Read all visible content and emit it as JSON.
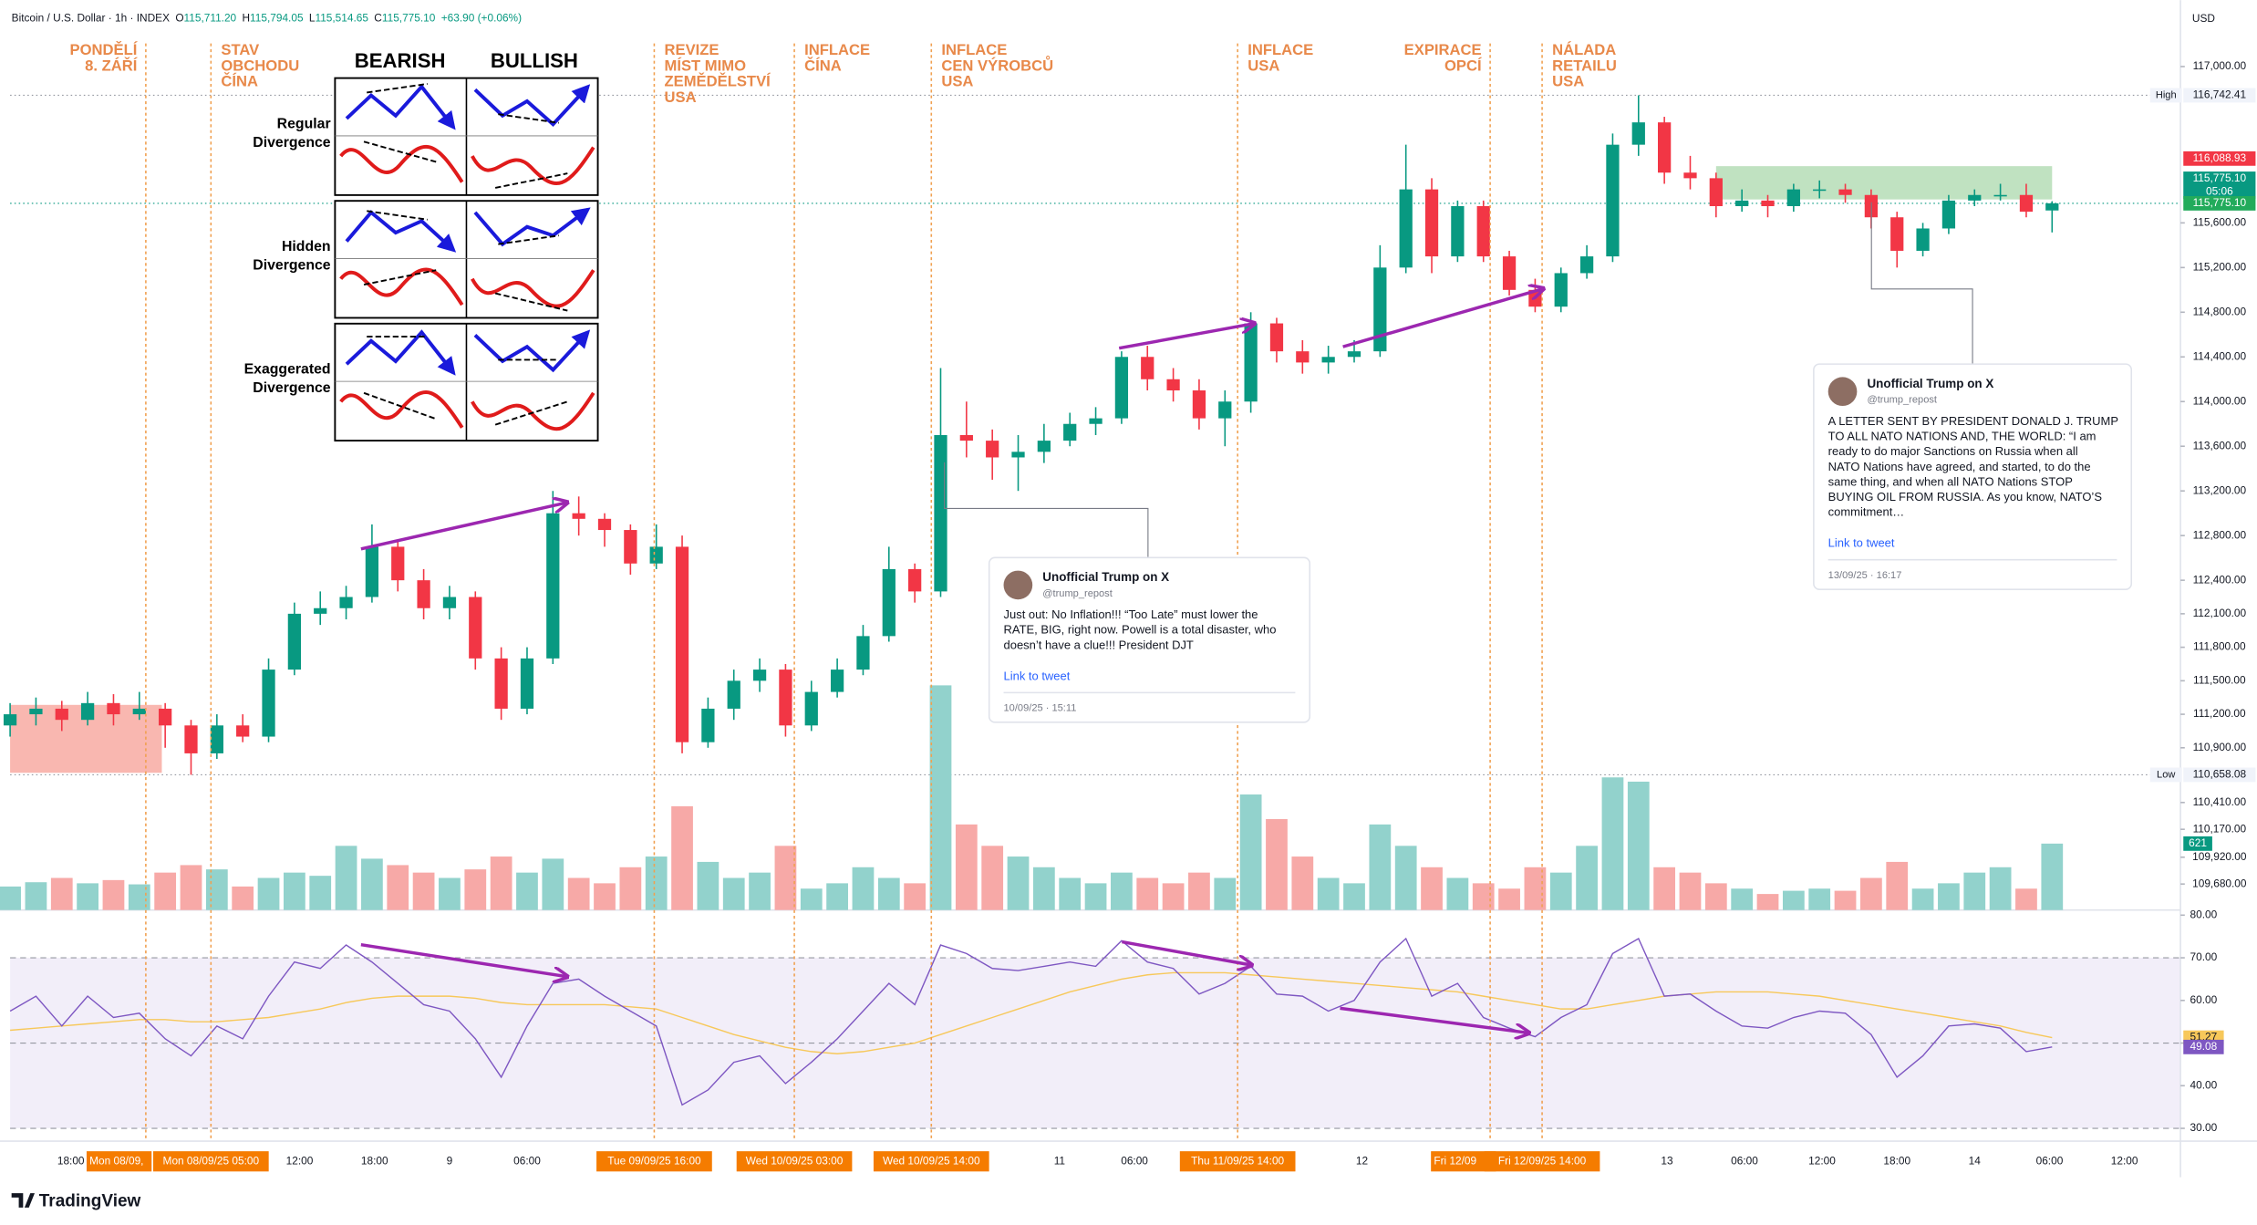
{
  "chart_data": {
    "type": "candlestick",
    "header": {
      "symbol": "Bitcoin / U.S. Dollar · 1h · INDEX",
      "ohlc": [
        {
          "key": "O",
          "value": "115,711.20"
        },
        {
          "key": "H",
          "value": "115,794.05"
        },
        {
          "key": "L",
          "value": "115,514.65"
        },
        {
          "key": "C",
          "value": "115,775.10"
        }
      ],
      "change": "+63.90 (+0.06%)"
    },
    "currency": "USD",
    "colors": {
      "up": "#089981",
      "down": "#f23645",
      "volume_up": "#92d2cc",
      "volume_down": "#f7a9a7",
      "rsi": "#7e57c2",
      "rsi_ma": "#f7c85a",
      "event": "#e8894a"
    },
    "ylim": [
      109447,
      117595
    ],
    "yticks": [
      {
        "value": 117000,
        "label": "117,000.00"
      },
      {
        "value": 115600,
        "label": "115,600.00"
      },
      {
        "value": 115200,
        "label": "115,200.00"
      },
      {
        "value": 114800,
        "label": "114,800.00"
      },
      {
        "value": 114400,
        "label": "114,400.00"
      },
      {
        "value": 114000,
        "label": "114,000.00"
      },
      {
        "value": 113600,
        "label": "113,600.00"
      },
      {
        "value": 113200,
        "label": "113,200.00"
      },
      {
        "value": 112800,
        "label": "112,800.00"
      },
      {
        "value": 112400,
        "label": "112,400.00"
      },
      {
        "value": 112100,
        "label": "112,100.00"
      },
      {
        "value": 111800,
        "label": "111,800.00"
      },
      {
        "value": 111500,
        "label": "111,500.00"
      },
      {
        "value": 111200,
        "label": "111,200.00"
      },
      {
        "value": 110900,
        "label": "110,900.00"
      },
      {
        "value": 110410,
        "label": "110,410.00"
      },
      {
        "value": 110170,
        "label": "110,170.00"
      },
      {
        "value": 109920,
        "label": "109,920.00"
      },
      {
        "value": 109680,
        "label": "109,680.00"
      }
    ],
    "candles": [
      [
        111100,
        111300,
        111000,
        111200
      ],
      [
        111200,
        111350,
        111100,
        111250
      ],
      [
        111250,
        111320,
        111050,
        111150
      ],
      [
        111150,
        111400,
        111100,
        111300
      ],
      [
        111300,
        111380,
        111100,
        111200
      ],
      [
        111200,
        111400,
        111150,
        111250
      ],
      [
        111250,
        111300,
        110900,
        111100
      ],
      [
        111100,
        111150,
        110658.08,
        110850
      ],
      [
        110850,
        111200,
        110800,
        111100
      ],
      [
        111100,
        111200,
        110950,
        111000
      ],
      [
        111000,
        111700,
        110950,
        111600
      ],
      [
        111600,
        112200,
        111550,
        112100
      ],
      [
        112100,
        112300,
        112000,
        112150
      ],
      [
        112150,
        112350,
        112050,
        112250
      ],
      [
        112250,
        112900,
        112200,
        112700
      ],
      [
        112700,
        112750,
        112300,
        112400
      ],
      [
        112400,
        112500,
        112050,
        112150
      ],
      [
        112150,
        112350,
        112050,
        112250
      ],
      [
        112250,
        112300,
        111600,
        111700
      ],
      [
        111700,
        111800,
        111150,
        111250
      ],
      [
        111250,
        111800,
        111200,
        111700
      ],
      [
        111700,
        113200,
        111650,
        113000
      ],
      [
        113000,
        113150,
        112800,
        112950
      ],
      [
        112950,
        113000,
        112700,
        112850
      ],
      [
        112850,
        112900,
        112450,
        112550
      ],
      [
        112550,
        112900,
        112500,
        112700
      ],
      [
        112700,
        112800,
        110850,
        110950
      ],
      [
        110950,
        111350,
        110900,
        111250
      ],
      [
        111250,
        111600,
        111150,
        111500
      ],
      [
        111500,
        111700,
        111400,
        111600
      ],
      [
        111600,
        111650,
        111000,
        111100
      ],
      [
        111100,
        111500,
        111050,
        111400
      ],
      [
        111400,
        111700,
        111350,
        111600
      ],
      [
        111600,
        112000,
        111550,
        111900
      ],
      [
        111900,
        112700,
        111850,
        112500
      ],
      [
        112500,
        112550,
        112200,
        112300
      ],
      [
        112300,
        114300,
        112250,
        113700
      ],
      [
        113700,
        114000,
        113500,
        113650
      ],
      [
        113650,
        113750,
        113300,
        113500
      ],
      [
        113500,
        113700,
        113200,
        113550
      ],
      [
        113550,
        113800,
        113450,
        113650
      ],
      [
        113650,
        113900,
        113600,
        113800
      ],
      [
        113800,
        113950,
        113700,
        113850
      ],
      [
        113850,
        114450,
        113800,
        114400
      ],
      [
        114400,
        114500,
        114100,
        114200
      ],
      [
        114200,
        114300,
        114000,
        114100
      ],
      [
        114100,
        114200,
        113750,
        113850
      ],
      [
        113850,
        114100,
        113600,
        114000
      ],
      [
        114000,
        114800,
        113900,
        114700
      ],
      [
        114700,
        114750,
        114350,
        114450
      ],
      [
        114450,
        114550,
        114250,
        114350
      ],
      [
        114350,
        114500,
        114250,
        114400
      ],
      [
        114400,
        114550,
        114350,
        114450
      ],
      [
        114450,
        115400,
        114400,
        115200
      ],
      [
        115200,
        116300,
        115150,
        115900
      ],
      [
        115900,
        116000,
        115150,
        115300
      ],
      [
        115300,
        115800,
        115250,
        115750
      ],
      [
        115750,
        115800,
        115250,
        115300
      ],
      [
        115300,
        115350,
        114950,
        115000
      ],
      [
        115000,
        115100,
        114800,
        114850
      ],
      [
        114850,
        115200,
        114800,
        115150
      ],
      [
        115150,
        115400,
        115100,
        115300
      ],
      [
        115300,
        116400,
        115250,
        116300
      ],
      [
        116300,
        116742.41,
        116200,
        116500
      ],
      [
        116500,
        116550,
        115950,
        116050
      ],
      [
        116050,
        116200,
        115900,
        116000
      ],
      [
        116000,
        116050,
        115650,
        115750
      ],
      [
        115750,
        115900,
        115700,
        115800
      ],
      [
        115800,
        115850,
        115650,
        115750
      ],
      [
        115750,
        115950,
        115700,
        115900
      ],
      [
        115900,
        115980,
        115820,
        115900
      ],
      [
        115900,
        115950,
        115780,
        115850
      ],
      [
        115850,
        115900,
        115550,
        115650
      ],
      [
        115650,
        115700,
        115200,
        115350
      ],
      [
        115350,
        115600,
        115300,
        115550
      ],
      [
        115550,
        115850,
        115500,
        115800
      ],
      [
        115800,
        115900,
        115750,
        115850
      ],
      [
        115850,
        115950,
        115800,
        115850
      ],
      [
        115850,
        115950,
        115650,
        115700
      ],
      [
        115711.2,
        115794.05,
        115514.65,
        115775.1
      ]
    ],
    "high": {
      "tag": "High",
      "value": 116742.41,
      "label": "116,742.41"
    },
    "low": {
      "tag": "Low",
      "value": 110658.08,
      "label": "110,658.08"
    },
    "price_labels": [
      {
        "value": 116088.93,
        "label": "116,088.93",
        "color": "#f23645"
      },
      {
        "value": 115775.1,
        "label": "115,775.10",
        "countdown": "05:06",
        "color": "#089981"
      },
      {
        "value": 115775.1,
        "label": "115,775.10",
        "color": "#22ab5b"
      }
    ],
    "zones": [
      {
        "x": [
          66,
          79
        ],
        "y": [
          115810,
          116108
        ],
        "color": "#a5d6a7"
      },
      {
        "x": [
          0,
          5.87
        ],
        "y": [
          110676,
          111284
        ],
        "color": "#f7998f"
      }
    ],
    "volume": {
      "ylim": [
        0,
        3375
      ],
      "values": [
        220,
        260,
        300,
        250,
        280,
        240,
        350,
        420,
        380,
        220,
        300,
        350,
        320,
        600,
        480,
        420,
        350,
        300,
        380,
        500,
        350,
        480,
        300,
        250,
        400,
        500,
        970,
        450,
        300,
        350,
        600,
        200,
        250,
        400,
        300,
        250,
        2100,
        800,
        600,
        500,
        400,
        300,
        250,
        350,
        300,
        250,
        350,
        300,
        1080,
        850,
        500,
        300,
        250,
        800,
        600,
        400,
        300,
        250,
        200,
        400,
        350,
        600,
        1240,
        1200,
        400,
        350,
        250,
        200,
        150,
        180,
        200,
        180,
        300,
        450,
        200,
        250,
        350,
        400,
        200,
        621
      ]
    },
    "rsi": {
      "ylim": [
        27,
        81.2
      ],
      "yticks": [
        {
          "value": 80,
          "label": "80.00"
        },
        {
          "value": 70,
          "label": "70.00"
        },
        {
          "value": 60,
          "label": "60.00"
        },
        {
          "value": 50,
          "label": "50.00"
        },
        {
          "value": 40,
          "label": "40.00"
        },
        {
          "value": 30,
          "label": "30.00"
        }
      ],
      "bands": [
        30,
        50,
        70
      ],
      "values": [
        57.5,
        61,
        54,
        61,
        56,
        57,
        51,
        47,
        54,
        51,
        61,
        69,
        67.5,
        73,
        69,
        64,
        59,
        57.5,
        51,
        42,
        54,
        64,
        65,
        61,
        57.5,
        54,
        35.5,
        39,
        45.5,
        47,
        40.5,
        45.5,
        51,
        57.5,
        64,
        59,
        73,
        71,
        67.5,
        67,
        68,
        69,
        68,
        74,
        69,
        67.5,
        61.5,
        64,
        68,
        61.5,
        61,
        57.5,
        60,
        69,
        74.5,
        61,
        64,
        56,
        53.5,
        51.5,
        56,
        59,
        71,
        74.5,
        61,
        61.5,
        57.5,
        54,
        53.5,
        56,
        57.5,
        57,
        52,
        42,
        47,
        54,
        54.5,
        53.5,
        48,
        49.08
      ],
      "ma": [
        53,
        53.5,
        54,
        54.5,
        55,
        55.5,
        55.5,
        55,
        55,
        55.5,
        56,
        57,
        58,
        59.5,
        60.5,
        61,
        61,
        61,
        60.5,
        59.5,
        59,
        59,
        59,
        59,
        58.5,
        58,
        56,
        54,
        52,
        50.5,
        49,
        48,
        47.5,
        48,
        49,
        50,
        52,
        54,
        56,
        58,
        60,
        62,
        63.5,
        65,
        66,
        66.5,
        66.5,
        66.5,
        66,
        65.5,
        65,
        64.5,
        64,
        63.5,
        63,
        62.5,
        62,
        61,
        60,
        59,
        58,
        58,
        59,
        60,
        61,
        61.5,
        62,
        62,
        62,
        61.5,
        61,
        60,
        59,
        58,
        57,
        56,
        55,
        54,
        52.5,
        51.27
      ]
    },
    "xticks": [
      {
        "value": 2.35,
        "label": "18:00"
      },
      {
        "value": 11.2,
        "label": "12:00"
      },
      {
        "value": 14.1,
        "label": "18:00"
      },
      {
        "value": 17,
        "label": "9"
      },
      {
        "value": 20,
        "label": "06:00"
      },
      {
        "value": 40.6,
        "label": "11"
      },
      {
        "value": 43.5,
        "label": "06:00"
      },
      {
        "value": 52.3,
        "label": "12"
      },
      {
        "value": 64.1,
        "label": "13"
      },
      {
        "value": 67.1,
        "label": "06:00"
      },
      {
        "value": 70.1,
        "label": "12:00"
      },
      {
        "value": 73,
        "label": "18:00"
      },
      {
        "value": 76,
        "label": "14"
      },
      {
        "value": 78.9,
        "label": "06:00"
      },
      {
        "value": 81.8,
        "label": "12:00"
      }
    ],
    "events": [
      {
        "x": 5.25,
        "lines": [
          "PONDĚLÍ",
          "8. ZÁŘÍ"
        ],
        "anchor": "end",
        "time": "Mon 08/09,"
      },
      {
        "x": 7.77,
        "lines": [
          "STAV",
          "OBCHODU",
          "ČÍNA"
        ],
        "time": "Mon 08/09/25  05:00"
      },
      {
        "x": 24.92,
        "lines": [
          "REVIZE",
          "MÍST MIMO",
          "ZEMĚDĚLSTVÍ",
          "USA"
        ],
        "time": "Tue 09/09/25  16:00"
      },
      {
        "x": 30.34,
        "lines": [
          "INFLACE",
          "ČÍNA"
        ],
        "time": "Wed 10/09/25  03:00"
      },
      {
        "x": 35.64,
        "lines": [
          "INFLACE",
          "CEN VÝROBCŮ",
          "USA"
        ],
        "time": "Wed 10/09/25  14:00"
      },
      {
        "x": 47.49,
        "lines": [
          "INFLACE",
          "USA"
        ],
        "time": "Thu 11/09/25  14:00"
      },
      {
        "x": 57.26,
        "lines": [
          "EXPIRACE",
          "OPCÍ"
        ],
        "anchor": "end",
        "time": "Fri 12/09"
      },
      {
        "x": 59.27,
        "lines": [
          "NÁLADA",
          "RETAILU",
          "USA"
        ],
        "time": "Fri 12/09/25  14:00"
      }
    ]
  },
  "divergence_guide": {
    "columns": [
      "BEARISH",
      "BULLISH"
    ],
    "rows": [
      [
        "Regular",
        "Divergence"
      ],
      [
        "Hidden",
        "Divergence"
      ],
      [
        "Exaggerated",
        "Divergence"
      ]
    ]
  },
  "tweets": [
    {
      "name": "Unofficial Trump on X",
      "handle": "@trump_repost",
      "lines": [
        "Just out: No Inflation!!! “Too Late” must lower the",
        "RATE, BIG, right now. Powell is a total disaster, who",
        "doesn’t have a clue!!! President DJT"
      ],
      "link": "Link to tweet",
      "date": "10/09/25 · 15:11"
    },
    {
      "name": "Unofficial Trump on X",
      "handle": "@trump_repost",
      "lines": [
        "A LETTER SENT BY PRESIDENT DONALD J. TRUMP",
        "TO ALL NATO NATIONS AND, THE WORLD: “I am",
        "ready to do major Sanctions on Russia when all",
        "NATO Nations have agreed, and started, to do the",
        "same thing, and when all NATO Nations STOP",
        "BUYING OIL FROM RUSSIA. As you know, NATO’S",
        "commitment…"
      ],
      "link": "Link to tweet",
      "date": "13/09/25 · 16:17"
    }
  ],
  "brand": "TradingView"
}
